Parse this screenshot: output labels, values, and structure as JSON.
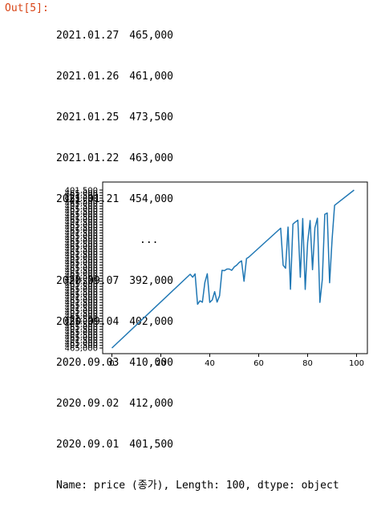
{
  "cell": {
    "out_prompt": "Out[5]:"
  },
  "series": {
    "rows": [
      {
        "date": "2021.01.27",
        "value": "465,000"
      },
      {
        "date": "2021.01.26",
        "value": "461,000"
      },
      {
        "date": "2021.01.25",
        "value": "473,500"
      },
      {
        "date": "2021.01.22",
        "value": "463,000"
      },
      {
        "date": "2021.01.21",
        "value": "454,000"
      },
      {
        "date": "...",
        "value": ""
      },
      {
        "date": "2020.09.07",
        "value": "392,000"
      },
      {
        "date": "2020.09.04",
        "value": "402,000"
      },
      {
        "date": "2020.09.03",
        "value": "410,000"
      },
      {
        "date": "2020.09.02",
        "value": "412,000"
      },
      {
        "date": "2020.09.01",
        "value": "401,500"
      }
    ],
    "footer": "Name: price (종가), Length: 100, dtype: object"
  },
  "chart_data": {
    "type": "line",
    "title": "",
    "xlabel": "",
    "ylabel": "",
    "xlim": [
      0,
      100
    ],
    "x_ticks": [
      0,
      20,
      40,
      60,
      80,
      100
    ],
    "y_tick_labels_visible": [
      "401,500",
      "465,000"
    ],
    "y_tick_labels_overlapping": true,
    "grid": false,
    "series_color": "#1f77b4",
    "series": [
      {
        "x": [
          0,
          32,
          33,
          34,
          35,
          36,
          37,
          38,
          39,
          40,
          41,
          42,
          43,
          44,
          45,
          46,
          47,
          48,
          49,
          50,
          51,
          52,
          53,
          54,
          55,
          56,
          69,
          70,
          71,
          72,
          73,
          74,
          75,
          76,
          77,
          78,
          79,
          80,
          81,
          82,
          83,
          84,
          85,
          86,
          87,
          88,
          89,
          90,
          91,
          92,
          99
        ],
        "y": [
          0,
          46.7,
          44.8,
          46.9,
          27.7,
          29.9,
          29.0,
          41.5,
          47.0,
          28.9,
          30.4,
          35.7,
          29.1,
          33.0,
          49.2,
          49.0,
          50.0,
          50.0,
          49.2,
          51.3,
          52.5,
          54.1,
          55.2,
          42.3,
          56.6,
          57.6,
          75.9,
          52.4,
          50.5,
          76.6,
          37.2,
          78.5,
          79.8,
          80.9,
          44.8,
          82.0,
          37.1,
          66.9,
          80.7,
          49.6,
          76.1,
          82.2,
          28.9,
          43.4,
          84.6,
          85.5,
          41.3,
          68.7,
          90.3,
          91.5,
          100
        ]
      }
    ]
  }
}
